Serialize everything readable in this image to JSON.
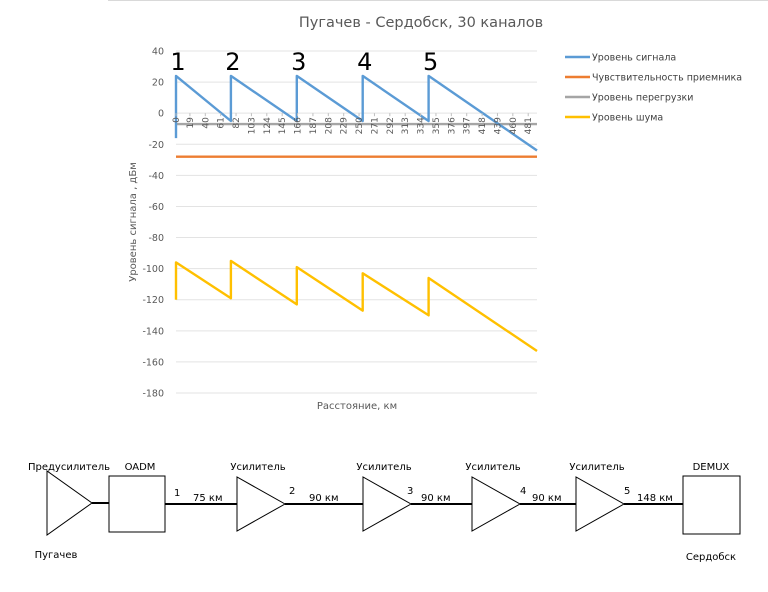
{
  "chart_data": {
    "type": "line",
    "title": "Пугачев - Сердобск, 30 каналов",
    "xlabel": "Расстояние, км",
    "ylabel": "Уровень сигнала , дБм",
    "ylim": [
      -180,
      40
    ],
    "yticks": [
      40,
      20,
      0,
      -20,
      -40,
      -60,
      -80,
      -100,
      -120,
      -140,
      -160,
      -180
    ],
    "xlim": [
      0,
      493
    ],
    "xticks": [
      0,
      19,
      40,
      61,
      82,
      103,
      124,
      145,
      166,
      187,
      208,
      229,
      250,
      271,
      292,
      313,
      334,
      355,
      376,
      397,
      418,
      439,
      460,
      481
    ],
    "grid": true,
    "legend_position": "right",
    "amplifier_markers": [
      {
        "label": "1",
        "x": 0
      },
      {
        "label": "2",
        "x": 75
      },
      {
        "label": "3",
        "x": 165
      },
      {
        "label": "4",
        "x": 255
      },
      {
        "label": "5",
        "x": 345
      }
    ],
    "series": [
      {
        "name": "Уровень сигнала",
        "color": "#5b9bd5",
        "points": [
          [
            0,
            -16
          ],
          [
            0,
            24
          ],
          [
            75,
            -5
          ],
          [
            75,
            24
          ],
          [
            165,
            -5
          ],
          [
            165,
            24
          ],
          [
            255,
            -5
          ],
          [
            255,
            24
          ],
          [
            345,
            -5
          ],
          [
            345,
            24
          ],
          [
            493,
            -24
          ]
        ]
      },
      {
        "name": "Чувствительность приемника",
        "color": "#ed7d31",
        "points": [
          [
            0,
            -28
          ],
          [
            493,
            -28
          ]
        ]
      },
      {
        "name": "Уровень перегрузки",
        "color": "#a5a5a5",
        "points": [
          [
            0,
            -7
          ],
          [
            493,
            -7
          ]
        ]
      },
      {
        "name": "Уровень шума",
        "color": "#ffc000",
        "points": [
          [
            0,
            -120
          ],
          [
            0,
            -96
          ],
          [
            75,
            -119
          ],
          [
            75,
            -95
          ],
          [
            165,
            -123
          ],
          [
            165,
            -99
          ],
          [
            255,
            -127
          ],
          [
            255,
            -103
          ],
          [
            345,
            -130
          ],
          [
            345,
            -106
          ],
          [
            493,
            -153
          ]
        ]
      }
    ]
  },
  "scheme": {
    "preamp_label": "Предусилитель",
    "oadm_label": "OADM",
    "demux_label": "DEMUX",
    "start_city": "Пугачев",
    "end_city": "Сердобск",
    "amplifiers": [
      {
        "label": "Усилитель"
      },
      {
        "label": "Усилитель"
      },
      {
        "label": "Усилитель"
      },
      {
        "label": "Усилитель"
      }
    ],
    "spans": [
      {
        "num": "1",
        "length": "75 км"
      },
      {
        "num": "2",
        "length": "90 км"
      },
      {
        "num": "3",
        "length": "90 км"
      },
      {
        "num": "4",
        "length": "90 км"
      },
      {
        "num": "5",
        "length": "148 км"
      }
    ]
  }
}
